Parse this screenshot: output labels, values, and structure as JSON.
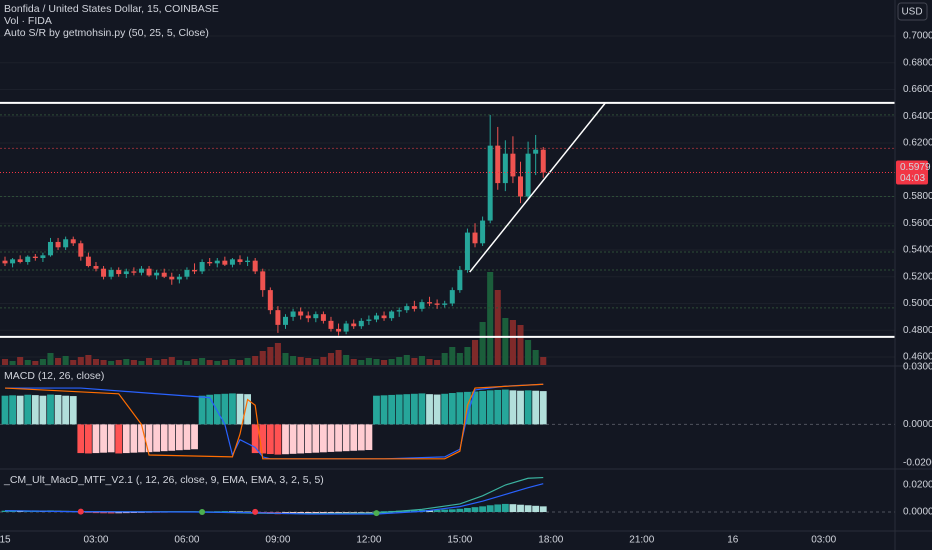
{
  "chart_data": [
    {
      "type": "candlestick",
      "title": "Bonfida / United States Dollar, 15, COINBASE",
      "indicator": "Auto S/R by getmohsin.py (50, 25, 5, Close)",
      "currency": "USD",
      "up_color": "#26a69a",
      "down_color": "#ef5350",
      "open": [
        0.532,
        0.53,
        0.533,
        0.531,
        0.535,
        0.534,
        0.536,
        0.546,
        0.542,
        0.548,
        0.545,
        0.535,
        0.528,
        0.526,
        0.52,
        0.525,
        0.522,
        0.524,
        0.523,
        0.526,
        0.521,
        0.523,
        0.52,
        0.518,
        0.52,
        0.525,
        0.524,
        0.531,
        0.53,
        0.532,
        0.529,
        0.533,
        0.531,
        0.532,
        0.524,
        0.51,
        0.495,
        0.484,
        0.49,
        0.494,
        0.491,
        0.489,
        0.492,
        0.487,
        0.481,
        0.479,
        0.485,
        0.483,
        0.487,
        0.488,
        0.491,
        0.489,
        0.494,
        0.495,
        0.498,
        0.496,
        0.501,
        0.5,
        0.499,
        0.5,
        0.51,
        0.525,
        0.553,
        0.545,
        0.562,
        0.618,
        0.59,
        0.612,
        0.595,
        0.58,
        0.612,
        0.615
      ],
      "high": [
        0.535,
        0.534,
        0.536,
        0.536,
        0.537,
        0.538,
        0.549,
        0.549,
        0.55,
        0.55,
        0.547,
        0.538,
        0.531,
        0.528,
        0.527,
        0.527,
        0.526,
        0.527,
        0.528,
        0.528,
        0.525,
        0.526,
        0.523,
        0.522,
        0.527,
        0.53,
        0.533,
        0.534,
        0.534,
        0.535,
        0.534,
        0.536,
        0.535,
        0.534,
        0.526,
        0.512,
        0.498,
        0.492,
        0.496,
        0.497,
        0.494,
        0.494,
        0.494,
        0.49,
        0.485,
        0.487,
        0.488,
        0.489,
        0.491,
        0.493,
        0.494,
        0.495,
        0.497,
        0.5,
        0.502,
        0.503,
        0.505,
        0.503,
        0.502,
        0.512,
        0.528,
        0.556,
        0.56,
        0.565,
        0.641,
        0.632,
        0.622,
        0.625,
        0.606,
        0.621,
        0.626,
        0.617
      ],
      "low": [
        0.528,
        0.527,
        0.53,
        0.529,
        0.532,
        0.531,
        0.535,
        0.54,
        0.54,
        0.543,
        0.532,
        0.527,
        0.524,
        0.518,
        0.518,
        0.52,
        0.519,
        0.521,
        0.521,
        0.52,
        0.518,
        0.519,
        0.514,
        0.515,
        0.518,
        0.522,
        0.522,
        0.528,
        0.527,
        0.528,
        0.527,
        0.529,
        0.528,
        0.522,
        0.505,
        0.492,
        0.478,
        0.481,
        0.487,
        0.488,
        0.486,
        0.486,
        0.485,
        0.479,
        0.476,
        0.477,
        0.481,
        0.481,
        0.484,
        0.486,
        0.487,
        0.487,
        0.49,
        0.493,
        0.494,
        0.494,
        0.498,
        0.496,
        0.497,
        0.498,
        0.508,
        0.523,
        0.542,
        0.543,
        0.56,
        0.585,
        0.584,
        0.59,
        0.575,
        0.578,
        0.596,
        0.594
      ],
      "close": [
        0.53,
        0.533,
        0.531,
        0.535,
        0.534,
        0.536,
        0.546,
        0.542,
        0.548,
        0.545,
        0.535,
        0.528,
        0.526,
        0.52,
        0.525,
        0.522,
        0.524,
        0.523,
        0.526,
        0.521,
        0.523,
        0.52,
        0.518,
        0.52,
        0.525,
        0.524,
        0.531,
        0.53,
        0.532,
        0.529,
        0.533,
        0.531,
        0.532,
        0.524,
        0.51,
        0.495,
        0.484,
        0.49,
        0.494,
        0.491,
        0.489,
        0.492,
        0.487,
        0.481,
        0.479,
        0.485,
        0.483,
        0.487,
        0.488,
        0.491,
        0.489,
        0.494,
        0.495,
        0.498,
        0.496,
        0.501,
        0.5,
        0.499,
        0.5,
        0.51,
        0.525,
        0.553,
        0.545,
        0.562,
        0.618,
        0.59,
        0.612,
        0.595,
        0.58,
        0.612,
        0.615,
        0.5979
      ],
      "volume": {
        "label": "Vol · FIDA",
        "ylim": [
          0,
          100
        ],
        "up_color": "#1b5e3b",
        "down_color": "#7f2a2a",
        "values": [
          6,
          4,
          8,
          5,
          4,
          6,
          12,
          7,
          9,
          5,
          8,
          10,
          6,
          5,
          4,
          5,
          6,
          5,
          4,
          7,
          5,
          6,
          8,
          5,
          4,
          6,
          7,
          5,
          4,
          5,
          6,
          5,
          7,
          9,
          14,
          18,
          22,
          12,
          9,
          8,
          7,
          6,
          8,
          12,
          15,
          10,
          6,
          5,
          7,
          6,
          5,
          6,
          8,
          10,
          7,
          9,
          6,
          5,
          12,
          18,
          12,
          18,
          25,
          43,
          93,
          75,
          47,
          45,
          40,
          25,
          15,
          8
        ]
      },
      "levels": [
        {
          "value": 0.65,
          "color": "#ffffff"
        },
        {
          "value": 0.475,
          "color": "#ffffff"
        },
        {
          "value": 0.641,
          "color": "#2e4d37"
        },
        {
          "value": 0.616,
          "color": "#8a2e36"
        },
        {
          "value": 0.58,
          "color": "#2e4d37"
        },
        {
          "value": 0.558,
          "color": "#2e4d37"
        },
        {
          "value": 0.5385,
          "color": "#2e4d37"
        },
        {
          "value": 0.525,
          "color": "#2e4d37"
        },
        {
          "value": 0.4967,
          "color": "#2e4d37"
        }
      ],
      "trendline": {
        "x": [
          61.3,
          79.2
        ],
        "values": [
          0.5235,
          0.65
        ],
        "color": "#ffffff"
      },
      "last_price": {
        "value": 0.5979,
        "label": "0.5979"
      },
      "countdown": "04:03",
      "price_color": "#f23645",
      "ylim": [
        0.454,
        0.7269
      ],
      "yticks": [
        {
          "value": 0.7,
          "label": "0.7000"
        },
        {
          "value": 0.68,
          "label": "0.6800"
        },
        {
          "value": 0.66,
          "label": "0.6600"
        },
        {
          "value": 0.64,
          "label": "0.6400"
        },
        {
          "value": 0.62,
          "label": "0.6200"
        },
        {
          "value": 0.58,
          "label": "0.5800"
        },
        {
          "value": 0.56,
          "label": "0.5600"
        },
        {
          "value": 0.54,
          "label": "0.5400"
        },
        {
          "value": 0.52,
          "label": "0.5200"
        },
        {
          "value": 0.5,
          "label": "0.5000"
        },
        {
          "value": 0.48,
          "label": "0.4800"
        },
        {
          "value": 0.46,
          "label": "0.4600"
        }
      ],
      "xlim": [
        -0.66,
        117.4
      ],
      "xticks": [
        {
          "value": 0,
          "label": "15"
        },
        {
          "value": 12,
          "label": "03:00"
        },
        {
          "value": 24,
          "label": "06:00"
        },
        {
          "value": 36,
          "label": "09:00"
        },
        {
          "value": 48,
          "label": "12:00"
        },
        {
          "value": 60,
          "label": "15:00"
        },
        {
          "value": 72,
          "label": "18:00"
        },
        {
          "value": 84,
          "label": "21:00"
        },
        {
          "value": 96,
          "label": "16"
        },
        {
          "value": 108,
          "label": "03:00"
        }
      ]
    },
    {
      "type": "macd",
      "title": "MACD (12, 26, close)",
      "palette": {
        "up_rising": "#26a69a",
        "up_falling": "#b2dfdb",
        "down_falling": "#ff5252",
        "down_rising": "#ffcdd2"
      },
      "histogram": [
        0.015,
        0.0152,
        0.015,
        0.0155,
        0.0153,
        0.015,
        0.0156,
        0.0154,
        0.015,
        0.0148,
        -0.015,
        -0.0152,
        -0.015,
        -0.0148,
        -0.0146,
        -0.0152,
        -0.015,
        -0.0148,
        -0.0146,
        -0.0145,
        -0.0143,
        -0.014,
        -0.0138,
        -0.0135,
        -0.0133,
        -0.013,
        0.015,
        0.0155,
        0.0158,
        0.016,
        0.0162,
        0.016,
        0.0158,
        -0.015,
        -0.0152,
        -0.0155,
        -0.0158,
        -0.0156,
        -0.0154,
        -0.0152,
        -0.015,
        -0.0148,
        -0.0146,
        -0.0144,
        -0.0142,
        -0.014,
        -0.0138,
        -0.0136,
        -0.0134,
        0.015,
        0.0152,
        0.0154,
        0.0156,
        0.0158,
        0.016,
        0.0162,
        0.0158,
        0.0156,
        0.016,
        0.0164,
        0.0168,
        0.017,
        0.0172,
        0.0175,
        0.0178,
        0.018,
        0.0182,
        0.0178,
        0.0176,
        0.0178,
        0.0176,
        0.0174
      ],
      "lines": [
        {
          "color": "#2962ff",
          "x": [
            0,
            10,
            20,
            27,
            29,
            30,
            31,
            33,
            34,
            35,
            40,
            50,
            58,
            60,
            61,
            62,
            66,
            71
          ],
          "values": [
            0.019,
            0.019,
            0.016,
            0.014,
            0.0,
            -0.016,
            -0.008,
            -0.012,
            -0.017,
            -0.018,
            -0.018,
            -0.018,
            -0.017,
            -0.013,
            0.005,
            0.018,
            0.02,
            0.021
          ]
        },
        {
          "color": "#ff6d00",
          "x": [
            0,
            15,
            18,
            19,
            30,
            31,
            32,
            33,
            34,
            58,
            60,
            61,
            62,
            71
          ],
          "values": [
            0.019,
            0.016,
            0.0,
            -0.016,
            -0.017,
            -0.005,
            0.013,
            0.01,
            -0.018,
            -0.018,
            -0.014,
            0.01,
            0.019,
            0.021
          ]
        }
      ],
      "ylim": [
        -0.0228,
        0.03
      ],
      "yticks": [
        {
          "value": 0.03,
          "label": "0.0300"
        },
        {
          "value": 0,
          "label": "0.0000"
        },
        {
          "value": -0.02,
          "label": "-0.0200"
        }
      ]
    },
    {
      "type": "macd",
      "title": "_CM_Ult_MacD_MTF_V2.1 (, 12, 26, close, 9, EMA, EMA, 3, 2, 5, 5)",
      "palette": {
        "up_rising": "#26a69a",
        "up_falling": "#b2dfdb",
        "down_falling": "#ff5252",
        "down_rising": "#ffcdd2"
      },
      "histogram": [
        0.001,
        0.0011,
        0.0008,
        0.001,
        0.0012,
        0.001,
        0.0012,
        0.0009,
        0.0008,
        0.0006,
        -0.0004,
        -0.0006,
        -0.0008,
        -0.0009,
        -0.001,
        -0.0009,
        -0.0008,
        -0.0007,
        -0.0006,
        -0.0005,
        -0.0005,
        -0.0004,
        -0.0003,
        -0.0003,
        -0.0002,
        -0.0002,
        0.0003,
        0.0005,
        0.0006,
        0.0007,
        0.0006,
        0.0005,
        0.0004,
        -0.0006,
        -0.001,
        -0.0014,
        -0.0016,
        -0.0015,
        -0.0014,
        -0.0013,
        -0.0012,
        -0.0011,
        -0.001,
        -0.0009,
        -0.0008,
        -0.0007,
        -0.0006,
        -0.0005,
        -0.0004,
        0.0004,
        0.0006,
        0.0008,
        0.001,
        0.0012,
        0.0014,
        0.0016,
        0.0015,
        0.0016,
        0.0018,
        0.002,
        0.0024,
        0.003,
        0.0036,
        0.0042,
        0.005,
        0.0056,
        0.006,
        0.0058,
        0.0054,
        0.005,
        0.0046,
        0.0042
      ],
      "lines": [
        {
          "color": "#3bb3a0",
          "x": [
            0,
            10,
            25,
            33,
            40,
            49,
            55,
            60,
            63,
            66,
            69,
            71
          ],
          "values": [
            0.001,
            0.0003,
            0.0002,
            -0.0008,
            -0.0012,
            -0.0008,
            0.002,
            0.006,
            0.012,
            0.02,
            0.025,
            0.0255
          ]
        },
        {
          "color": "#2962ff",
          "x": [
            0,
            10,
            25,
            33,
            40,
            49,
            55,
            60,
            63,
            66,
            69,
            71
          ],
          "values": [
            0.001,
            0.0002,
            0,
            -0.0005,
            -0.0015,
            -0.0015,
            0.0005,
            0.004,
            0.008,
            0.013,
            0.018,
            0.021
          ]
        }
      ],
      "markers": {
        "x": [
          10,
          26,
          33,
          49
        ],
        "values": [
          0.0003,
          0,
          0.0001,
          -0.0008
        ],
        "colors": [
          "#f23645",
          "#4caf50",
          "#f23645",
          "#4caf50"
        ]
      },
      "ylim": [
        -0.0133,
        0.0311
      ],
      "yticks": [
        {
          "value": 0.02,
          "label": "0.0200"
        },
        {
          "value": 0,
          "label": "0.0000"
        }
      ]
    }
  ]
}
